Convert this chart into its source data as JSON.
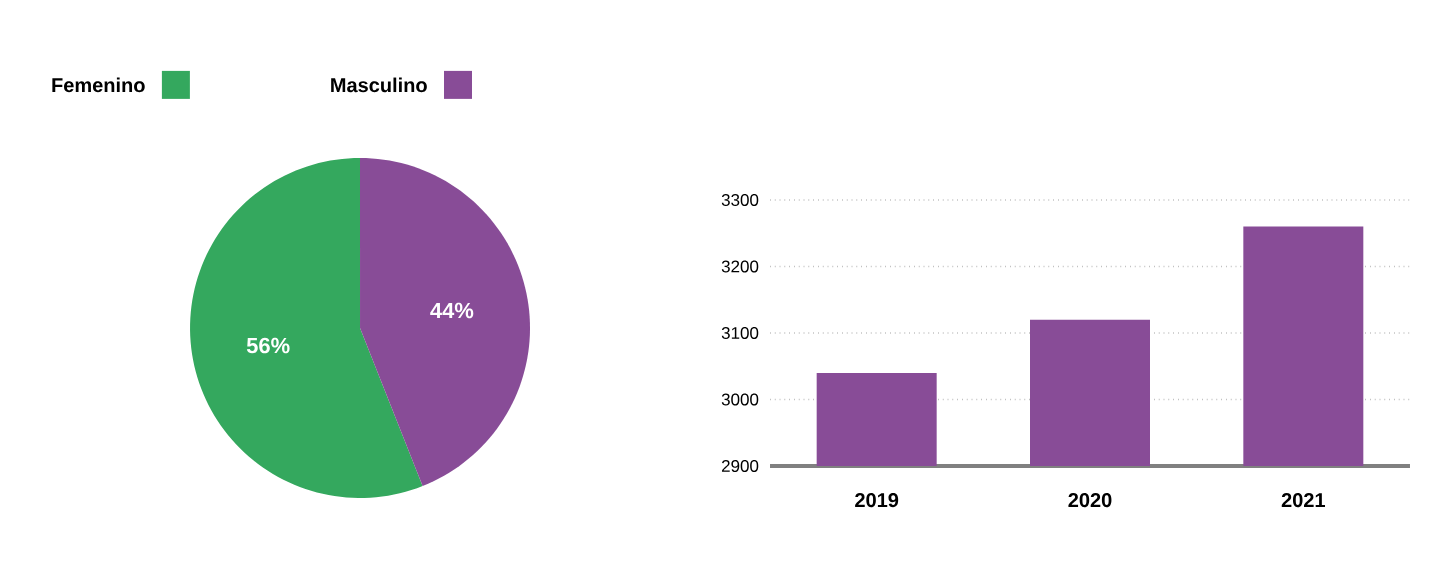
{
  "chart_data": [
    {
      "type": "pie",
      "categories": [
        "Femenino",
        "Masculino"
      ],
      "values": [
        56,
        44
      ],
      "colors": [
        "#34a85e",
        "#884c97"
      ],
      "legend": "top",
      "value_labels": [
        "56%",
        "44%"
      ]
    },
    {
      "type": "bar",
      "categories": [
        "2019",
        "2020",
        "2021"
      ],
      "values": [
        3040,
        3120,
        3260
      ],
      "color": "#884c97",
      "ylim": [
        2900,
        3300
      ],
      "yticks": [
        2900,
        3000,
        3100,
        3200,
        3300
      ],
      "grid": "y"
    }
  ]
}
